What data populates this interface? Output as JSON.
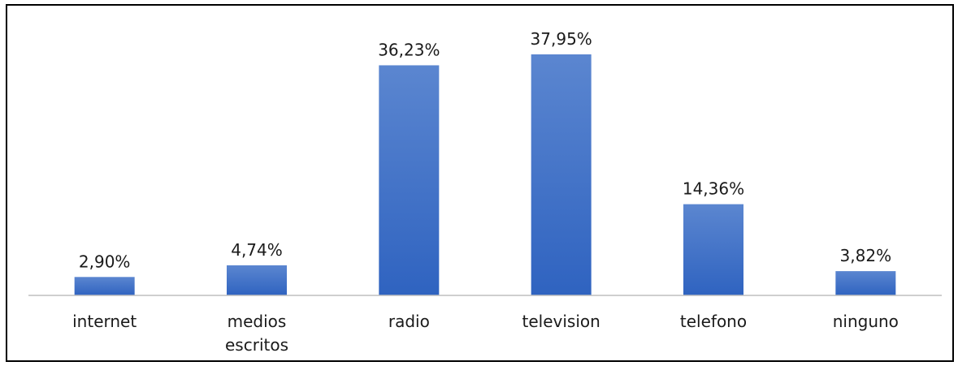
{
  "chart_data": {
    "type": "bar",
    "categories": [
      [
        "internet"
      ],
      [
        "medios",
        "escritos"
      ],
      [
        "radio"
      ],
      [
        "television"
      ],
      [
        "telefono"
      ],
      [
        "ninguno"
      ]
    ],
    "values": [
      2.9,
      4.74,
      36.23,
      37.95,
      14.36,
      3.82
    ],
    "value_labels": [
      "2,90%",
      "4,74%",
      "36,23%",
      "37,95%",
      "14,36%",
      "3,82%"
    ],
    "title": "",
    "xlabel": "",
    "ylabel": "",
    "ylim": [
      0,
      40
    ],
    "grid": false,
    "legend": "none",
    "colors": {
      "bar_top": "#5b86d0",
      "bar_bottom": "#2f63c0",
      "axis": "#bfbfbf",
      "text": "#1a1a1a"
    }
  }
}
